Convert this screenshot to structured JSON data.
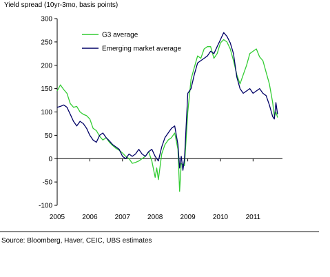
{
  "chart_data": {
    "type": "line",
    "title": "Yield spread (10yr-3mo, basis points)",
    "source": "Source: Bloomberg, Haver, CEIC, UBS estimates",
    "xlim": [
      2005,
      2011.9
    ],
    "ylim": [
      -100,
      300
    ],
    "x_ticks": [
      2005,
      2006,
      2007,
      2008,
      2009,
      2010,
      2011
    ],
    "x_tick_labels": [
      "2005",
      "2006",
      "2007",
      "2008",
      "2009",
      "2010",
      "2011"
    ],
    "y_ticks": [
      -100,
      -50,
      0,
      50,
      100,
      150,
      200,
      250,
      300
    ],
    "y_tick_labels": [
      "-100",
      "-50",
      "0",
      "50",
      "100",
      "150",
      "200",
      "250",
      "300"
    ],
    "grid": false,
    "legend_position": "top-left",
    "series": [
      {
        "name": "G3 average",
        "color": "#33cc33",
        "points": [
          [
            2005.0,
            145
          ],
          [
            2005.1,
            158
          ],
          [
            2005.2,
            148
          ],
          [
            2005.3,
            140
          ],
          [
            2005.4,
            118
          ],
          [
            2005.5,
            110
          ],
          [
            2005.6,
            112
          ],
          [
            2005.7,
            100
          ],
          [
            2005.8,
            95
          ],
          [
            2005.9,
            92
          ],
          [
            2006.0,
            85
          ],
          [
            2006.1,
            65
          ],
          [
            2006.2,
            60
          ],
          [
            2006.3,
            48
          ],
          [
            2006.4,
            40
          ],
          [
            2006.5,
            45
          ],
          [
            2006.6,
            35
          ],
          [
            2006.7,
            28
          ],
          [
            2006.8,
            22
          ],
          [
            2006.9,
            18
          ],
          [
            2007.0,
            12
          ],
          [
            2007.1,
            5
          ],
          [
            2007.2,
            0
          ],
          [
            2007.3,
            -10
          ],
          [
            2007.4,
            -8
          ],
          [
            2007.5,
            -5
          ],
          [
            2007.6,
            0
          ],
          [
            2007.7,
            5
          ],
          [
            2007.8,
            15
          ],
          [
            2007.9,
            -5
          ],
          [
            2008.0,
            -40
          ],
          [
            2008.05,
            -20
          ],
          [
            2008.1,
            -45
          ],
          [
            2008.2,
            10
          ],
          [
            2008.3,
            30
          ],
          [
            2008.4,
            40
          ],
          [
            2008.5,
            45
          ],
          [
            2008.6,
            55
          ],
          [
            2008.7,
            20
          ],
          [
            2008.75,
            -70
          ],
          [
            2008.8,
            -10
          ],
          [
            2008.9,
            -15
          ],
          [
            2009.0,
            100
          ],
          [
            2009.1,
            170
          ],
          [
            2009.2,
            195
          ],
          [
            2009.3,
            220
          ],
          [
            2009.4,
            215
          ],
          [
            2009.5,
            235
          ],
          [
            2009.6,
            240
          ],
          [
            2009.7,
            240
          ],
          [
            2009.8,
            215
          ],
          [
            2009.9,
            225
          ],
          [
            2010.0,
            248
          ],
          [
            2010.1,
            255
          ],
          [
            2010.2,
            250
          ],
          [
            2010.3,
            235
          ],
          [
            2010.4,
            210
          ],
          [
            2010.5,
            180
          ],
          [
            2010.6,
            160
          ],
          [
            2010.7,
            180
          ],
          [
            2010.8,
            200
          ],
          [
            2010.9,
            225
          ],
          [
            2011.0,
            230
          ],
          [
            2011.1,
            235
          ],
          [
            2011.2,
            218
          ],
          [
            2011.3,
            210
          ],
          [
            2011.4,
            185
          ],
          [
            2011.5,
            160
          ],
          [
            2011.6,
            120
          ],
          [
            2011.65,
            90
          ],
          [
            2011.7,
            100
          ],
          [
            2011.75,
            88
          ]
        ]
      },
      {
        "name": "Emerging market average",
        "color": "#000066",
        "points": [
          [
            2005.0,
            110
          ],
          [
            2005.1,
            112
          ],
          [
            2005.2,
            115
          ],
          [
            2005.3,
            110
          ],
          [
            2005.4,
            95
          ],
          [
            2005.5,
            80
          ],
          [
            2005.6,
            70
          ],
          [
            2005.7,
            80
          ],
          [
            2005.8,
            75
          ],
          [
            2005.9,
            65
          ],
          [
            2006.0,
            50
          ],
          [
            2006.1,
            40
          ],
          [
            2006.2,
            35
          ],
          [
            2006.3,
            50
          ],
          [
            2006.4,
            55
          ],
          [
            2006.5,
            45
          ],
          [
            2006.6,
            38
          ],
          [
            2006.7,
            30
          ],
          [
            2006.8,
            25
          ],
          [
            2006.9,
            20
          ],
          [
            2007.0,
            5
          ],
          [
            2007.1,
            0
          ],
          [
            2007.2,
            10
          ],
          [
            2007.3,
            5
          ],
          [
            2007.4,
            10
          ],
          [
            2007.5,
            20
          ],
          [
            2007.6,
            10
          ],
          [
            2007.7,
            5
          ],
          [
            2007.8,
            15
          ],
          [
            2007.9,
            20
          ],
          [
            2008.0,
            5
          ],
          [
            2008.1,
            -5
          ],
          [
            2008.2,
            25
          ],
          [
            2008.3,
            45
          ],
          [
            2008.4,
            55
          ],
          [
            2008.5,
            65
          ],
          [
            2008.6,
            70
          ],
          [
            2008.7,
            30
          ],
          [
            2008.75,
            -20
          ],
          [
            2008.8,
            5
          ],
          [
            2008.85,
            -25
          ],
          [
            2008.9,
            0
          ],
          [
            2009.0,
            140
          ],
          [
            2009.1,
            150
          ],
          [
            2009.2,
            180
          ],
          [
            2009.3,
            205
          ],
          [
            2009.4,
            210
          ],
          [
            2009.5,
            215
          ],
          [
            2009.6,
            220
          ],
          [
            2009.7,
            230
          ],
          [
            2009.8,
            225
          ],
          [
            2009.9,
            240
          ],
          [
            2010.0,
            255
          ],
          [
            2010.1,
            270
          ],
          [
            2010.2,
            262
          ],
          [
            2010.3,
            248
          ],
          [
            2010.4,
            225
          ],
          [
            2010.5,
            175
          ],
          [
            2010.6,
            150
          ],
          [
            2010.7,
            140
          ],
          [
            2010.8,
            145
          ],
          [
            2010.9,
            150
          ],
          [
            2011.0,
            140
          ],
          [
            2011.1,
            145
          ],
          [
            2011.2,
            150
          ],
          [
            2011.3,
            140
          ],
          [
            2011.4,
            135
          ],
          [
            2011.5,
            115
          ],
          [
            2011.6,
            90
          ],
          [
            2011.65,
            85
          ],
          [
            2011.7,
            120
          ],
          [
            2011.75,
            95
          ]
        ]
      }
    ]
  }
}
